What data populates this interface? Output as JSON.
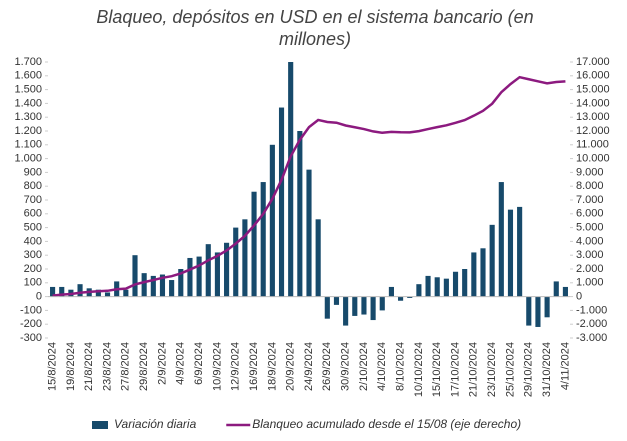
{
  "chart_data": {
    "type": "bar-line",
    "title": "Blaqueo, depósitos en USD en el sistema bancario (en millones)",
    "categories": [
      "15/8/2024",
      null,
      "19/8/2024",
      null,
      "21/8/2024",
      null,
      "23/8/2024",
      null,
      "27/8/2024",
      null,
      "29/8/2024",
      null,
      "2/9/2024",
      null,
      "4/9/2024",
      null,
      "6/9/2024",
      null,
      "10/9/2024",
      null,
      "12/9/2024",
      null,
      "16/9/2024",
      null,
      "18/9/2024",
      null,
      "20/9/2024",
      null,
      "24/9/2024",
      null,
      "26/9/2024",
      null,
      "30/9/2024",
      null,
      "2/10/2024",
      null,
      "4/10/2024",
      null,
      "8/10/2024",
      null,
      "10/10/2024",
      null,
      "15/10/2024",
      null,
      "17/10/2024",
      null,
      "21/10/2024",
      null,
      "23/10/2024",
      null,
      "25/10/2024",
      null,
      "29/10/2024",
      null,
      "31/10/2024",
      null,
      "4/11/2024"
    ],
    "series": [
      {
        "name": "Variación diaria",
        "color": "#174a6b",
        "type": "bar",
        "values": [
          70,
          70,
          50,
          90,
          60,
          50,
          30,
          110,
          50,
          300,
          170,
          150,
          160,
          120,
          200,
          280,
          290,
          380,
          320,
          390,
          500,
          560,
          760,
          830,
          1100,
          1370,
          1700,
          1200,
          920,
          560,
          -160,
          -60,
          -210,
          -140,
          -130,
          -170,
          -100,
          70,
          -30,
          -10,
          90,
          150,
          140,
          130,
          180,
          200,
          320,
          350,
          520,
          830,
          630,
          650,
          -210,
          -220,
          -150,
          110,
          70
        ]
      },
      {
        "name": "Blanqueo acumulado desde el 15/08 (eje derecho)",
        "color": "#8c1a7f",
        "type": "line",
        "axis": "y2",
        "values": [
          70,
          140,
          190,
          280,
          340,
          390,
          420,
          530,
          580,
          880,
          1050,
          1200,
          1360,
          1480,
          1680,
          1960,
          2250,
          2630,
          2950,
          3340,
          3840,
          4400,
          5160,
          5990,
          7090,
          8460,
          10160,
          11360,
          12280,
          12800,
          12650,
          12600,
          12400,
          12270,
          12140,
          11970,
          11870,
          11940,
          11910,
          11900,
          11990,
          12140,
          12280,
          12410,
          12590,
          12790,
          13110,
          13460,
          13980,
          14810,
          15400,
          15900,
          15750,
          15600,
          15450,
          15550,
          15600
        ]
      }
    ],
    "ylim": [
      -300,
      1700
    ],
    "yticks": [
      -300,
      -200,
      -100,
      0,
      100,
      200,
      300,
      400,
      500,
      600,
      700,
      800,
      900,
      {
        "value": 1000,
        "label": "1.000"
      },
      {
        "value": 1100,
        "label": "1.100"
      },
      {
        "value": 1200,
        "label": "1.200"
      },
      {
        "value": 1300,
        "label": "1.300"
      },
      {
        "value": 1400,
        "label": "1.400"
      },
      {
        "value": 1500,
        "label": "1.500"
      },
      {
        "value": 1600,
        "label": "1.600"
      },
      {
        "value": 1700,
        "label": "1.700"
      }
    ],
    "y2lim": [
      -3000,
      17000
    ],
    "y2ticks": [
      {
        "value": -3000,
        "label": "-3.000"
      },
      {
        "value": -2000,
        "label": "-2.000"
      },
      {
        "value": -1000,
        "label": "-1.000"
      },
      0,
      {
        "value": 1000,
        "label": "1.000"
      },
      {
        "value": 2000,
        "label": "2.000"
      },
      {
        "value": 3000,
        "label": "3.000"
      },
      {
        "value": 4000,
        "label": "4.000"
      },
      {
        "value": 5000,
        "label": "5.000"
      },
      {
        "value": 6000,
        "label": "6.000"
      },
      {
        "value": 7000,
        "label": "7.000"
      },
      {
        "value": 8000,
        "label": "8.000"
      },
      {
        "value": 9000,
        "label": "9.000"
      },
      {
        "value": 10000,
        "label": "10.000"
      },
      {
        "value": 11000,
        "label": "11.000"
      },
      {
        "value": 12000,
        "label": "12.000"
      },
      {
        "value": 13000,
        "label": "13.000"
      },
      {
        "value": 14000,
        "label": "14.000"
      },
      {
        "value": 15000,
        "label": "15.000"
      },
      {
        "value": 16000,
        "label": "16.000"
      },
      {
        "value": 17000,
        "label": "17.000"
      }
    ],
    "grid": false,
    "legend": "bottom"
  }
}
